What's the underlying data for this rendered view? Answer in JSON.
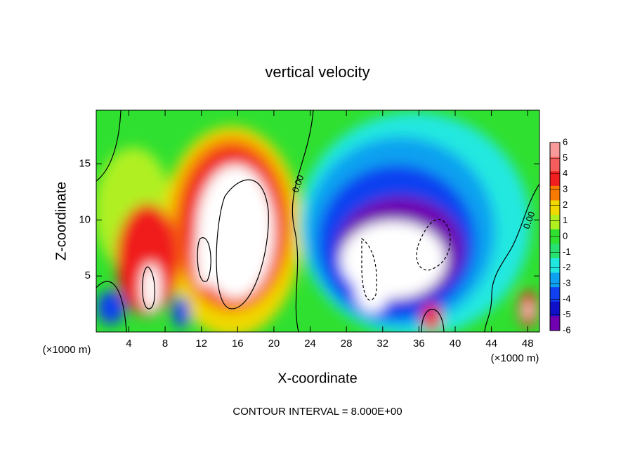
{
  "chart_data": {
    "type": "contour",
    "title": "vertical velocity",
    "x_label": "X-coordinate",
    "y_label": "Z-coordinate",
    "unit_label": "(×1000 m)",
    "xlim": [
      0.4,
      49.3
    ],
    "xticks": [
      4,
      8,
      12,
      16,
      20,
      24,
      28,
      32,
      36,
      40,
      44,
      48
    ],
    "ylim": [
      0,
      19.8
    ],
    "yticks": [
      5,
      10,
      15
    ],
    "annotation": "CONTOUR INTERVAL = 8.000E+00",
    "contour_labels": [
      "0.00",
      "0.00"
    ],
    "colorbar": {
      "lim": [
        -6,
        6
      ],
      "ticks": [
        6,
        5,
        4,
        3,
        2,
        1,
        0,
        -1,
        -2,
        -3,
        -4,
        -5,
        -6
      ],
      "colors": [
        "#f89a9a",
        "#f55c5c",
        "#f01e1e",
        "#f87a00",
        "#f0d800",
        "#b0f020",
        "#30e030",
        "#28e070",
        "#20e8e0",
        "#10a0f0",
        "#1040f0",
        "#1010c8",
        "#7000b0"
      ]
    }
  }
}
